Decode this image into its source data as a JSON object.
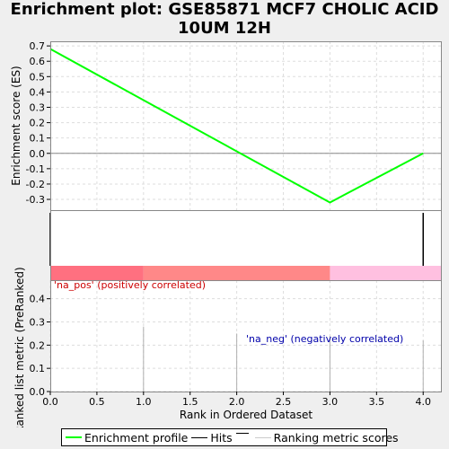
{
  "chart_data": {
    "type": "line",
    "title_lines": [
      "Enrichment plot: GSE85871 MCF7 CHOLIC ACID",
      "10UM 12H"
    ],
    "xlabel": "Rank in Ordered Dataset",
    "xlim": [
      0,
      4.2
    ],
    "x_ticks": [
      0.0,
      0.5,
      1.0,
      1.5,
      2.0,
      2.5,
      3.0,
      3.5,
      4.0
    ],
    "x_tick_labels": [
      "0.0",
      "0.5",
      "1.0",
      "1.5",
      "2.0",
      "2.5",
      "3.0",
      "3.5",
      "4.0"
    ],
    "es_panel": {
      "ylabel": "Enrichment score (ES)",
      "ylim": [
        -0.37,
        0.73
      ],
      "y_ticks": [
        0.7,
        0.6,
        0.5,
        0.4,
        0.3,
        0.2,
        0.1,
        0.0,
        -0.1,
        -0.2,
        -0.3
      ],
      "y_tick_labels": [
        "0.7",
        "0.6",
        "0.5",
        "0.4",
        "0.3",
        "0.2",
        "0.1",
        "0.0",
        "-0.1",
        "-0.2",
        "-0.3"
      ],
      "series": [
        {
          "name": "Enrichment profile",
          "color": "#00ff00",
          "x": [
            0,
            3,
            4
          ],
          "y": [
            0.68,
            -0.32,
            0.0
          ]
        }
      ]
    },
    "hits": {
      "x": [
        0,
        4
      ],
      "color": "#000000"
    },
    "color_bar": [
      {
        "from": 0,
        "to": 1,
        "color": "#ff7080"
      },
      {
        "from": 1,
        "to": 3,
        "color": "#ff8888"
      },
      {
        "from": 3,
        "to": 4.2,
        "color": "#ffc0e0"
      }
    ],
    "rank_panel": {
      "ylabel": "Ranked list metric (PreRanked)",
      "ylim": [
        0,
        0.48
      ],
      "y_ticks": [
        0.0,
        0.1,
        0.2,
        0.3,
        0.4
      ],
      "y_tick_labels": [
        "0.0",
        "0.1",
        "0.2",
        "0.3",
        "0.4"
      ],
      "bars": {
        "color": "#b0b0b0",
        "x": [
          1,
          2,
          3,
          4
        ],
        "y": [
          0.28,
          0.25,
          0.24,
          0.22
        ]
      },
      "pos_label": "'na_pos' (positively correlated)",
      "neg_label": "'na_neg' (negatively correlated)"
    },
    "legend": [
      {
        "label": "Enrichment profile",
        "color": "#00ff00"
      },
      {
        "label": "Hits",
        "color": "#000000"
      },
      {
        "label": "",
        "color": "#000000"
      },
      {
        "label": "Ranking metric scores",
        "color": "#cccccc"
      }
    ],
    "grid": true
  }
}
